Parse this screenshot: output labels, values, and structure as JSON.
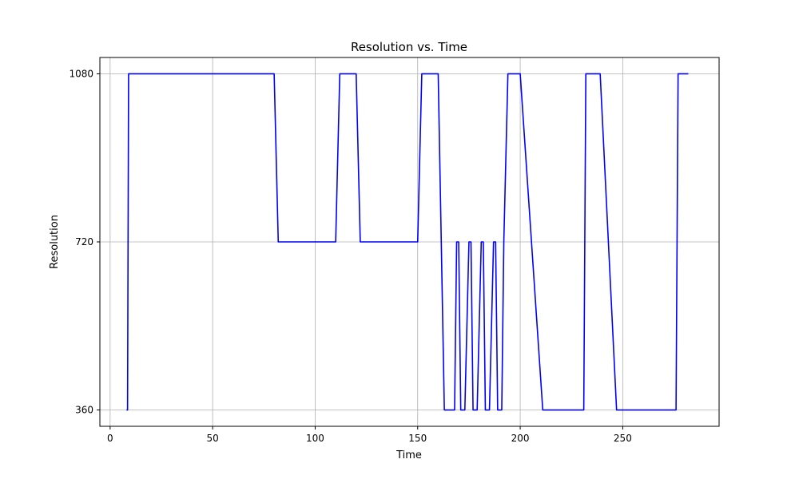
{
  "chart_data": {
    "type": "line",
    "title": "Resolution vs. Time",
    "xlabel": "Time",
    "ylabel": "Resolution",
    "xlim": [
      -5,
      297
    ],
    "ylim": [
      325,
      1115
    ],
    "xticks": [
      0,
      50,
      100,
      150,
      200,
      250
    ],
    "yticks": [
      360,
      720,
      1080
    ],
    "grid": true,
    "series": [
      {
        "color": "#0000ff",
        "x": [
          8,
          8.5,
          9,
          80,
          81,
          82,
          110,
          111,
          112,
          120,
          121,
          122,
          150,
          151,
          152,
          160,
          163,
          168,
          169,
          170,
          171,
          173,
          175,
          176,
          177,
          179,
          181,
          182,
          183,
          185,
          187,
          188,
          189,
          191,
          192,
          194,
          200,
          211,
          231,
          231.5,
          232,
          239,
          247,
          276,
          276.5,
          277,
          282
        ],
        "values": [
          360,
          360,
          1080,
          1080,
          900,
          720,
          720,
          900,
          1080,
          1080,
          900,
          720,
          720,
          900,
          1080,
          1080,
          360,
          360,
          720,
          720,
          360,
          360,
          720,
          720,
          360,
          360,
          720,
          720,
          360,
          360,
          720,
          720,
          360,
          360,
          720,
          1080,
          1080,
          360,
          360,
          720,
          1080,
          1080,
          360,
          360,
          720,
          1080,
          1080
        ]
      }
    ]
  }
}
